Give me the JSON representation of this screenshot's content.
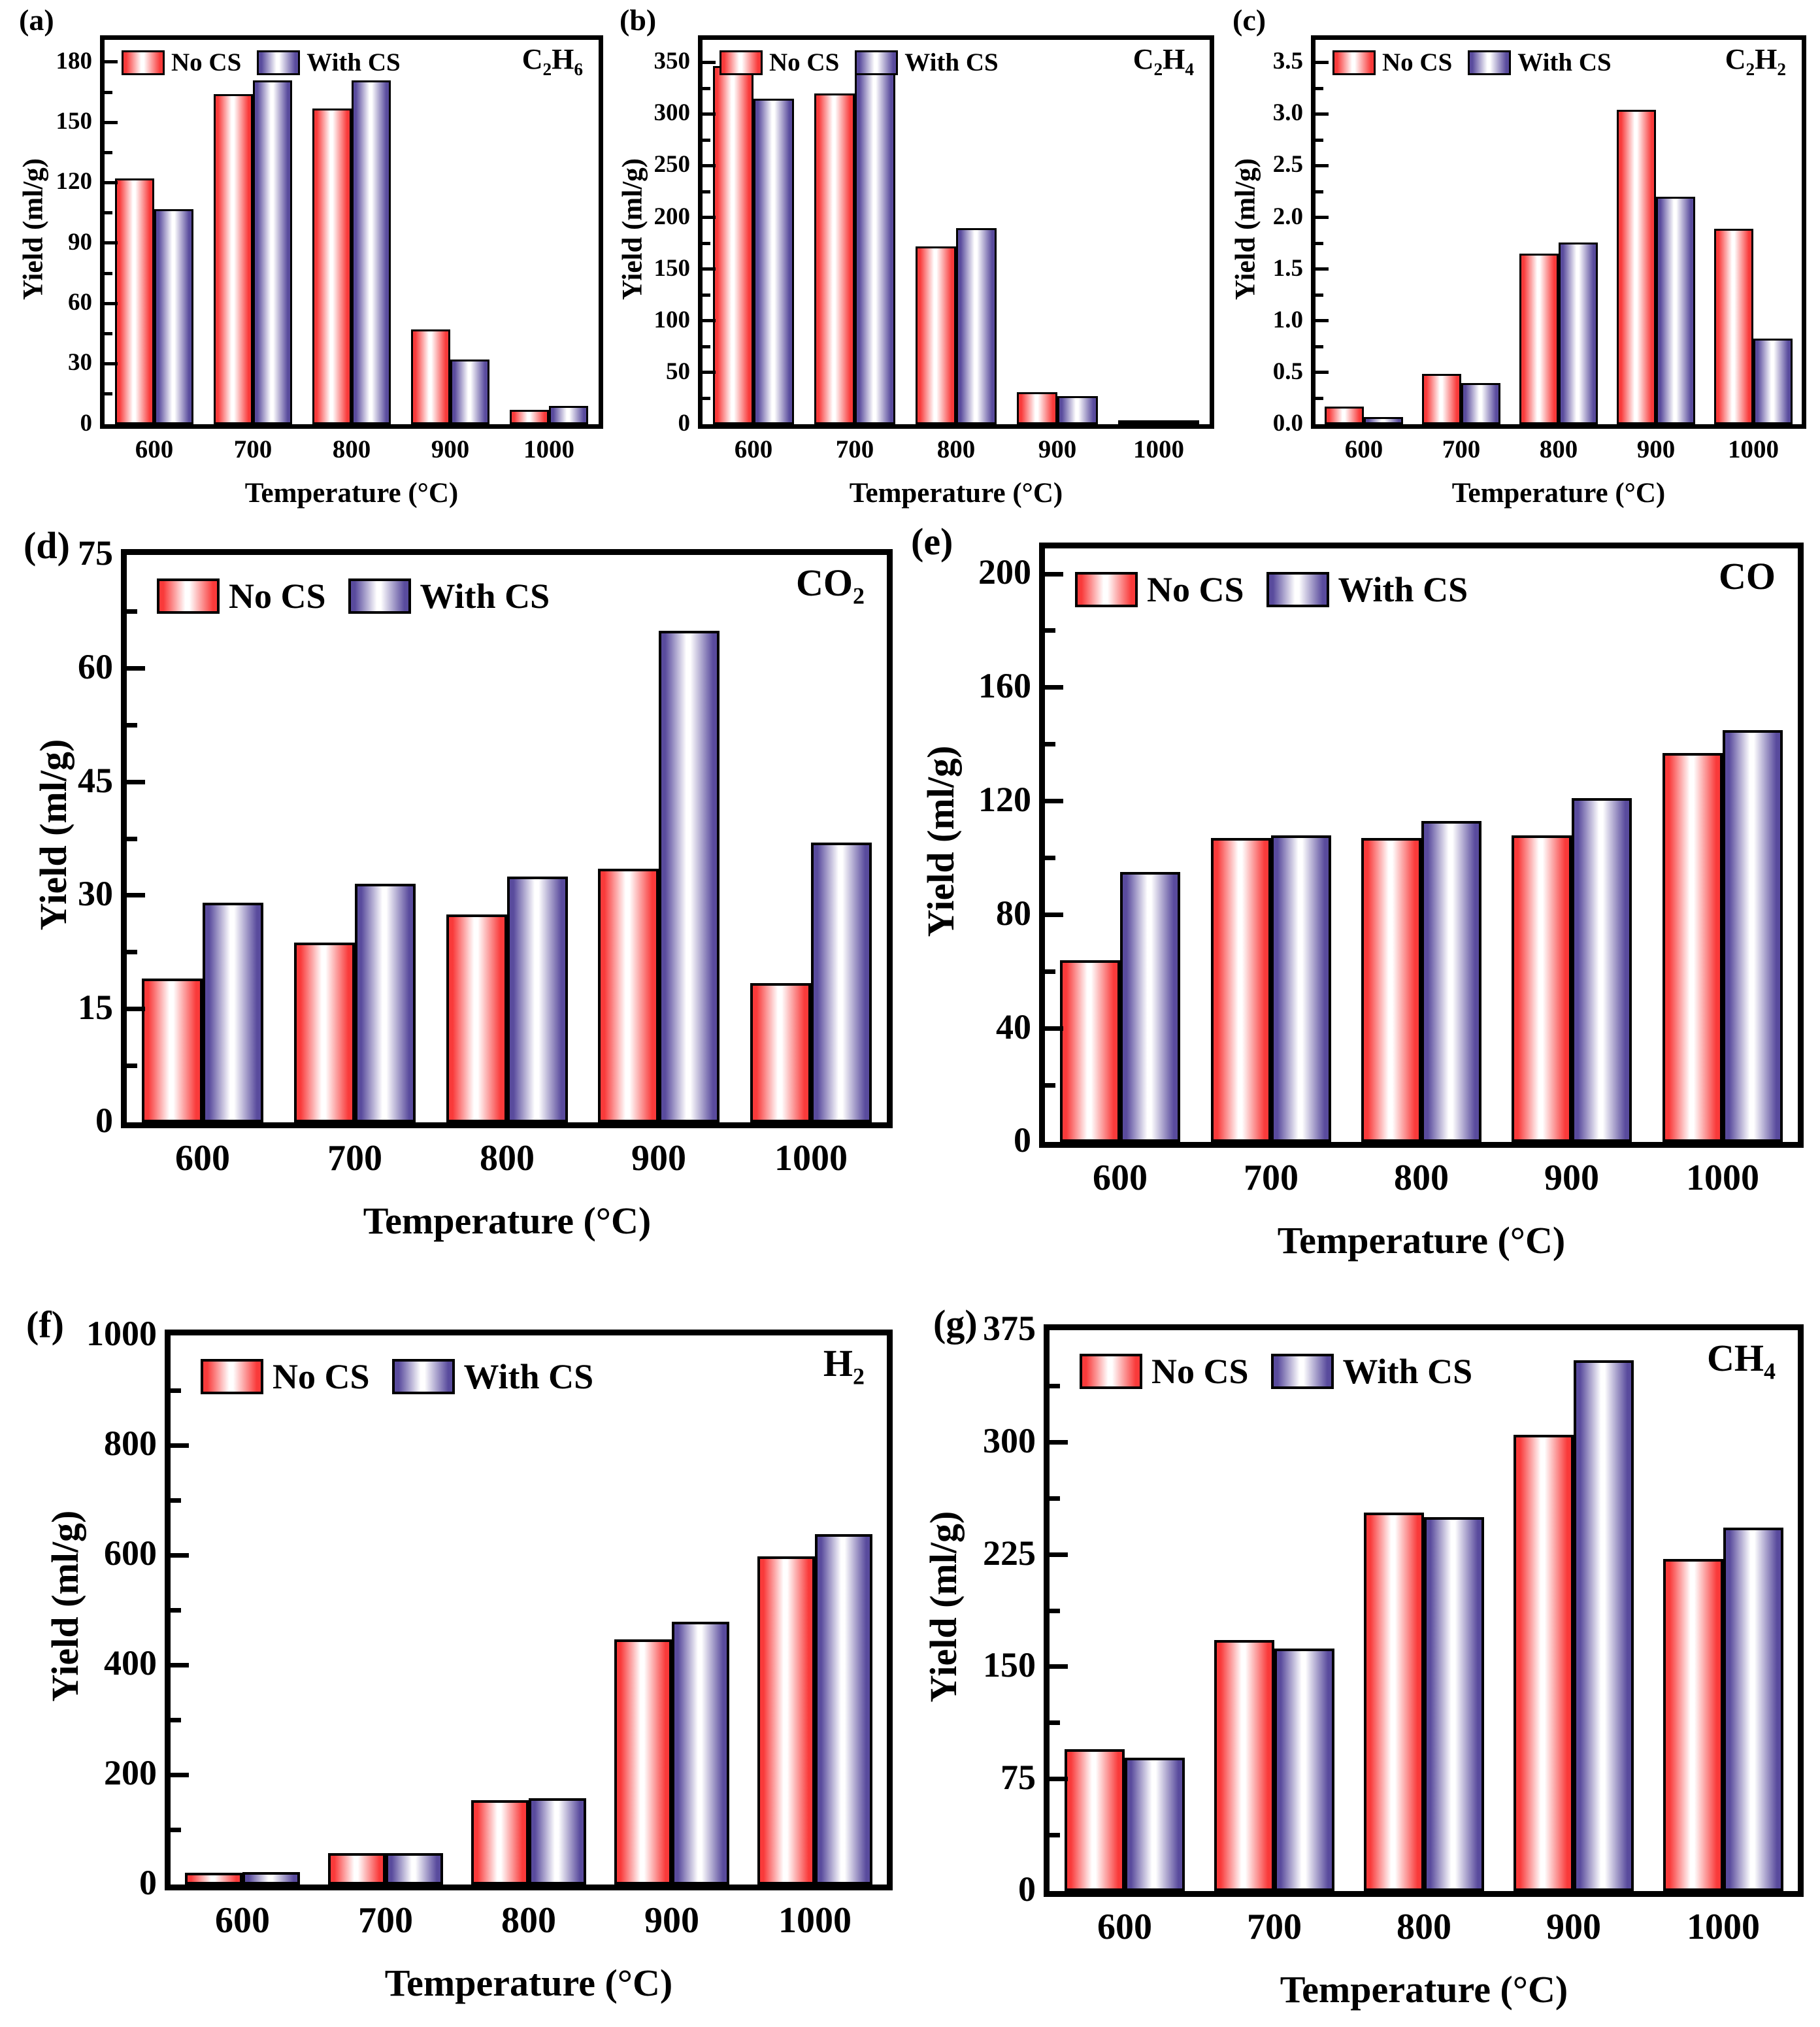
{
  "figure": {
    "xlabel": "Temperature (°C)",
    "ylabel": "Yield (ml/g)",
    "legend": [
      "No CS",
      "With CS"
    ],
    "colors": {
      "no_cs": "#f93a3a",
      "with_cs": "#594b9d",
      "outline": "#000000"
    },
    "chart_data": [
      {
        "id": "a",
        "panel_label": "(a)",
        "title": "C₂H₆",
        "type": "bar",
        "xlabel": "Temperature (°C)",
        "ylabel": "Yield (ml/g)",
        "categories": [
          "600",
          "700",
          "800",
          "900",
          "1000"
        ],
        "yticks": [
          "0",
          "30",
          "60",
          "90",
          "120",
          "150",
          "180"
        ],
        "ylim": [
          0,
          191
        ],
        "legend_position": "top-left",
        "grid": false,
        "series": [
          {
            "name": "No CS",
            "values": [
              122,
              164,
              157,
              47,
              7
            ]
          },
          {
            "name": "With CS",
            "values": [
              107,
              171,
              171,
              32,
              9
            ]
          }
        ]
      },
      {
        "id": "b",
        "panel_label": "(b)",
        "title": "C₂H₄",
        "type": "bar",
        "xlabel": "Temperature (°C)",
        "ylabel": "Yield (ml/g)",
        "categories": [
          "600",
          "700",
          "800",
          "900",
          "1000"
        ],
        "yticks": [
          "0",
          "50",
          "100",
          "150",
          "200",
          "250",
          "300",
          "350"
        ],
        "ylim": [
          0,
          372
        ],
        "legend_position": "top-left",
        "grid": false,
        "series": [
          {
            "name": "No CS",
            "values": [
              347,
              320,
              172,
              31,
              2
            ]
          },
          {
            "name": "With CS",
            "values": [
              315,
              347,
              190,
              27,
              4
            ]
          }
        ]
      },
      {
        "id": "c",
        "panel_label": "(c)",
        "title": "C₂H₂",
        "type": "bar",
        "xlabel": "Temperature (°C)",
        "ylabel": "Yield (ml/g)",
        "categories": [
          "600",
          "700",
          "800",
          "900",
          "1000"
        ],
        "yticks": [
          "0.0",
          "0.5",
          "1.0",
          "1.5",
          "2.0",
          "2.5",
          "3.0",
          "3.5"
        ],
        "ylim": [
          0,
          3.72
        ],
        "legend_position": "top-left",
        "grid": false,
        "series": [
          {
            "name": "No CS",
            "values": [
              0.17,
              0.49,
              1.65,
              3.04,
              1.89
            ]
          },
          {
            "name": "With CS",
            "values": [
              0.07,
              0.4,
              1.76,
              2.2,
              0.83
            ]
          }
        ]
      },
      {
        "id": "d",
        "panel_label": "(d)",
        "title": "CO₂",
        "type": "bar",
        "xlabel": "Temperature (°C)",
        "ylabel": "Yield (ml/g)",
        "categories": [
          "600",
          "700",
          "800",
          "900",
          "1000"
        ],
        "yticks": [
          "0",
          "15",
          "30",
          "45",
          "60",
          "75"
        ],
        "ylim": [
          0,
          75
        ],
        "legend_position": "top-left",
        "grid": false,
        "series": [
          {
            "name": "No CS",
            "values": [
              19,
              23.8,
              27.5,
              33.5,
              18.4
            ]
          },
          {
            "name": "With CS",
            "values": [
              29,
              31.5,
              32.5,
              65,
              37
            ]
          }
        ]
      },
      {
        "id": "e",
        "panel_label": "(e)",
        "title": "CO",
        "type": "bar",
        "xlabel": "Temperature (°C)",
        "ylabel": "Yield (ml/g)",
        "categories": [
          "600",
          "700",
          "800",
          "900",
          "1000"
        ],
        "yticks": [
          "0",
          "40",
          "80",
          "120",
          "160",
          "200"
        ],
        "ylim": [
          0,
          209
        ],
        "legend_position": "top-left",
        "grid": false,
        "series": [
          {
            "name": "No CS",
            "values": [
              64,
              107,
              107,
              108,
              137
            ]
          },
          {
            "name": "With CS",
            "values": [
              95,
              108,
              113,
              121,
              145
            ]
          }
        ]
      },
      {
        "id": "f",
        "panel_label": "(f)",
        "title": "H₂",
        "type": "bar",
        "xlabel": "Temperature (°C)",
        "ylabel": "Yield (ml/g)",
        "categories": [
          "600",
          "700",
          "800",
          "900",
          "1000"
        ],
        "yticks": [
          "0",
          "200",
          "400",
          "600",
          "800",
          "1000"
        ],
        "ylim": [
          0,
          1000
        ],
        "legend_position": "top-left",
        "grid": false,
        "series": [
          {
            "name": "No CS",
            "values": [
              22,
              57,
              154,
              447,
              598
            ]
          },
          {
            "name": "With CS",
            "values": [
              23,
              57,
              157,
              478,
              638
            ]
          }
        ]
      },
      {
        "id": "g",
        "panel_label": "(g)",
        "title": "CH₄",
        "type": "bar",
        "xlabel": "Temperature (°C)",
        "ylabel": "Yield (ml/g)",
        "categories": [
          "600",
          "700",
          "800",
          "900",
          "1000"
        ],
        "yticks": [
          "0",
          "75",
          "150",
          "225",
          "300",
          "375"
        ],
        "ylim": [
          0,
          375
        ],
        "legend_position": "top-left",
        "grid": false,
        "series": [
          {
            "name": "No CS",
            "values": [
              95,
              168,
              253,
              305,
              222
            ]
          },
          {
            "name": "With CS",
            "values": [
              89,
              162,
              250,
              355,
              243
            ]
          }
        ]
      }
    ]
  }
}
